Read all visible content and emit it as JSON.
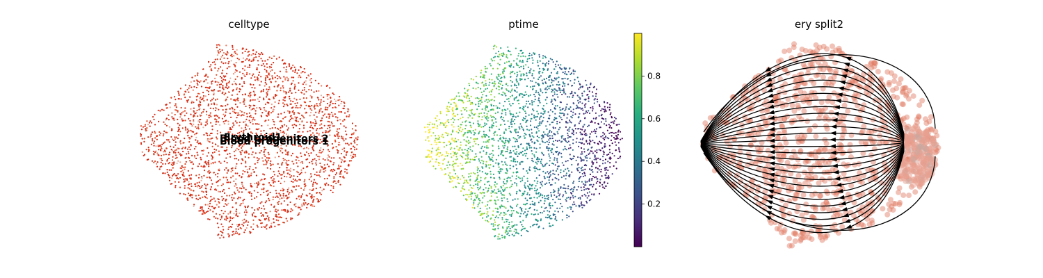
{
  "figure": {
    "panels": [
      {
        "title": "celltype"
      },
      {
        "title": "ptime"
      },
      {
        "title": "ery split2"
      }
    ]
  },
  "chart_data": [
    {
      "type": "scatter",
      "title": "celltype",
      "embedding": "UMAP",
      "color_by": "celltype",
      "palette": [
        "#d62a14",
        "#e0451f",
        "#c8381c",
        "#ee7a5e",
        "#f0a08a",
        "#d9b3a5"
      ],
      "overlapping_cluster_labels": [
        "Erythroid1",
        "Blood progenitors 1",
        "Blood progenitors 2"
      ],
      "notes": "cluster labels drawn overlapping at the embedding centroid"
    },
    {
      "type": "scatter",
      "title": "ptime",
      "embedding": "UMAP",
      "color_by": "ptime",
      "colormap": "viridis",
      "colorbar": {
        "range": [
          0,
          1
        ],
        "ticks": [
          0.2,
          0.4,
          0.6,
          0.8
        ],
        "tick_labels": [
          "0.2",
          "0.4",
          "0.6",
          "0.8"
        ]
      },
      "trend": "ptime high (yellow) at left tip, decreasing to low (purple) at right edge"
    },
    {
      "type": "scatter",
      "title": "ery split2",
      "embedding": "UMAP",
      "overlay": "velocity streamlines",
      "point_color": "#e07860",
      "streamline_color": "#000000",
      "flow_direction": "from right-side cluster toward left tip"
    }
  ]
}
